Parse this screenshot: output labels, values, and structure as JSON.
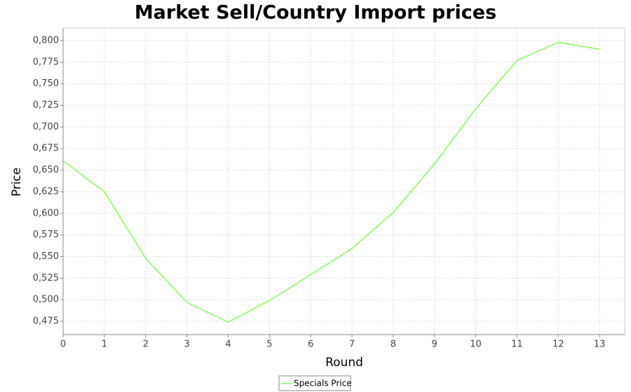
{
  "chart_data": {
    "type": "line",
    "title": "Market Sell/Country Import prices",
    "x_label": "Round",
    "y_label": "Price",
    "x": [
      0,
      1,
      2,
      3,
      4,
      5,
      6,
      7,
      8,
      9,
      10,
      11,
      12,
      13
    ],
    "series": [
      {
        "name": "Specials Price",
        "color": "#66ff33",
        "values": [
          0.661,
          0.625,
          0.548,
          0.497,
          0.474,
          0.499,
          0.529,
          0.559,
          0.601,
          0.657,
          0.721,
          0.777,
          0.798,
          0.79
        ]
      }
    ],
    "xlim": [
      0,
      13.61
    ],
    "ylim": [
      0.4596,
      0.8146
    ],
    "xticks": [
      0,
      1,
      2,
      3,
      4,
      5,
      6,
      7,
      8,
      9,
      10,
      11,
      12,
      13
    ],
    "yticks": [
      {
        "value": 0.475,
        "label": "0,475"
      },
      {
        "value": 0.5,
        "label": "0,500"
      },
      {
        "value": 0.525,
        "label": "0,525"
      },
      {
        "value": 0.55,
        "label": "0,550"
      },
      {
        "value": 0.575,
        "label": "0,575"
      },
      {
        "value": 0.6,
        "label": "0,600"
      },
      {
        "value": 0.625,
        "label": "0,625"
      },
      {
        "value": 0.65,
        "label": "0,650"
      },
      {
        "value": 0.675,
        "label": "0,675"
      },
      {
        "value": 0.7,
        "label": "0,700"
      },
      {
        "value": 0.725,
        "label": "0,725"
      },
      {
        "value": 0.75,
        "label": "0,750"
      },
      {
        "value": 0.775,
        "label": "0,775"
      },
      {
        "value": 0.8,
        "label": "0,800"
      }
    ],
    "grid": true,
    "legend": "bottom"
  }
}
